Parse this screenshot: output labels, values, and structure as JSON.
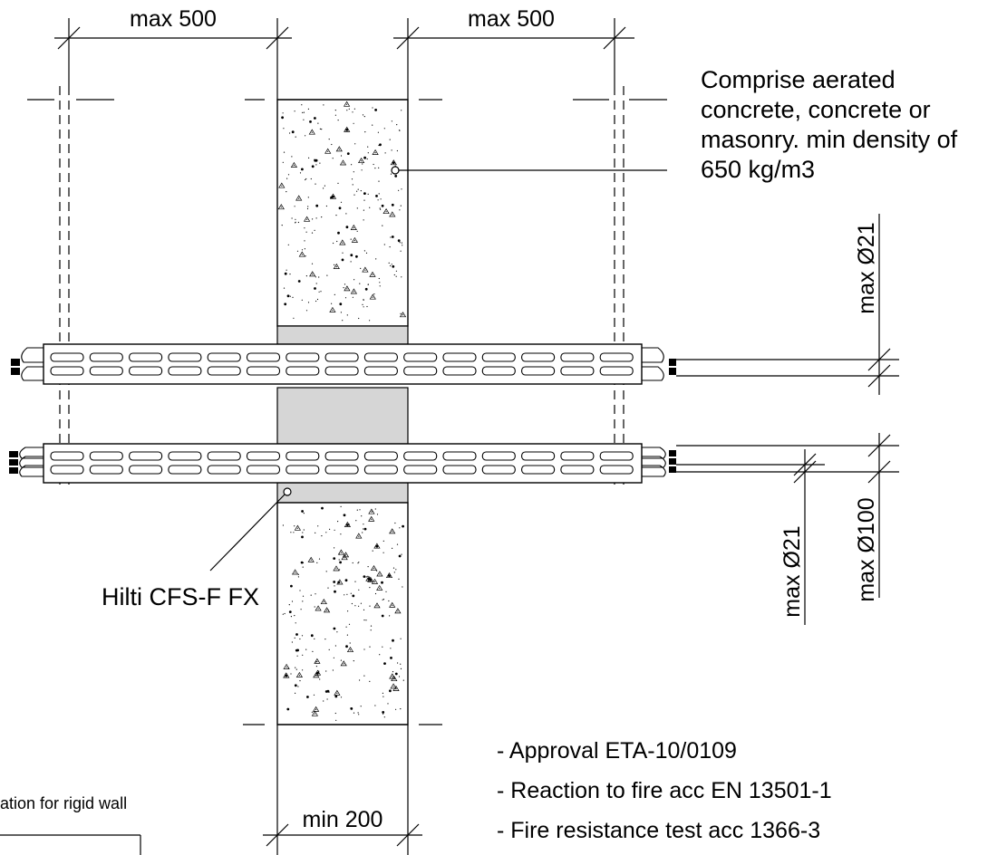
{
  "dimensions": {
    "left_spacing": "max 500",
    "right_spacing": "max 500",
    "wall_thickness": "min 200",
    "upper_cable_diameter": "max Ø21",
    "lower_cable_diameter": "max Ø21",
    "cable_bundle_diameter": "max Ø100"
  },
  "notes": {
    "wall_material": [
      "Comprise aerated",
      "concrete, concrete or",
      "masonry. min density of",
      "650 kg/m3"
    ],
    "product": "Hilti CFS-F FX"
  },
  "specs": [
    "- Approval ETA-10/0109",
    "- Reaction to fire acc EN 13501-1",
    "- Fire resistance test acc 1366-3"
  ],
  "footer_fragment": "ation for rigid wall"
}
